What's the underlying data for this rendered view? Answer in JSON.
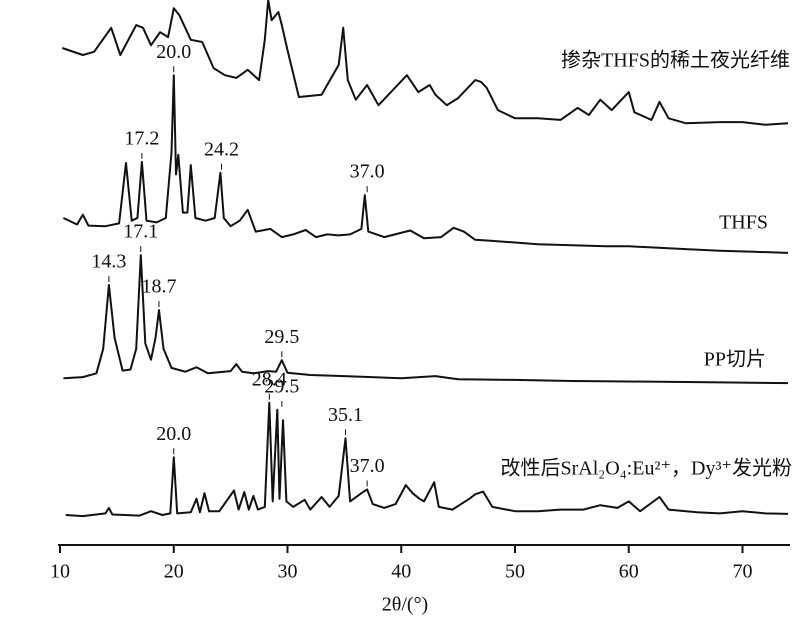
{
  "chart_data": {
    "type": "line",
    "x_label": "2θ/(°)",
    "xlim": [
      10,
      74
    ],
    "ylim": [
      0,
      100
    ],
    "xticks": [
      10,
      20,
      30,
      40,
      50,
      60,
      70
    ],
    "series": [
      {
        "name": "掺杂THFS的稀土夜光纤维",
        "color": "#111111",
        "x": [
          10.2,
          12,
          13,
          14.5,
          15.3,
          16.7,
          17.3,
          18,
          18.8,
          19.5,
          20,
          20.5,
          21.5,
          22.5,
          23.5,
          24.5,
          25.5,
          26.5,
          27.5,
          28,
          28.3,
          28.6,
          29.2,
          29.5,
          30,
          31,
          33,
          34.5,
          34.9,
          35.3,
          36,
          37,
          38,
          40.5,
          41.5,
          42.5,
          43,
          44,
          45,
          46.5,
          47,
          47.5,
          48.5,
          50,
          52,
          54,
          55.5,
          56.5,
          57.5,
          58.5,
          60,
          60.5,
          62,
          62.7,
          63.5,
          65,
          68,
          70,
          72,
          74
        ],
        "values": [
          91.2,
          89.9,
          90.5,
          94.9,
          89.9,
          95.4,
          94.9,
          91.7,
          94.1,
          93.2,
          98.5,
          97.2,
          92.7,
          92.3,
          87.5,
          86.2,
          85.7,
          87.2,
          85.3,
          92.7,
          100,
          96.3,
          97.8,
          95.4,
          90.8,
          82.2,
          82.6,
          88.1,
          94.9,
          85.3,
          81.7,
          84.4,
          80.7,
          86.2,
          83.1,
          84.4,
          82.6,
          80.7,
          82,
          85.3,
          85,
          83.9,
          79.8,
          78.3,
          78.3,
          78,
          80.2,
          78.9,
          81.7,
          79.8,
          83.1,
          79.4,
          78,
          81.3,
          78.3,
          77.4,
          77.6,
          77.6,
          77.1,
          77.4
        ],
        "peaks": [],
        "peak_labels": []
      },
      {
        "name": "THFS",
        "color": "#111111",
        "x": [
          10.3,
          11.5,
          12,
          12.5,
          14,
          15.2,
          15.8,
          16.3,
          16.8,
          17.2,
          17.6,
          18.5,
          19.3,
          19.8,
          20,
          20.2,
          20.4,
          20.8,
          21.2,
          21.5,
          21.9,
          22.8,
          23.6,
          24.1,
          24.4,
          25,
          25.8,
          26.5,
          27.2,
          28.5,
          29.5,
          30.5,
          31.6,
          32.5,
          33.5,
          34.5,
          35.5,
          36.5,
          36.8,
          37.1,
          38.5,
          40.8,
          42,
          43.5,
          44.6,
          45.5,
          46.5,
          48,
          50,
          52,
          55,
          58,
          60,
          62,
          65,
          68,
          71,
          74
        ],
        "values": [
          60,
          58.8,
          60.6,
          58.6,
          58.5,
          59,
          70.1,
          59.5,
          60,
          70.3,
          59.5,
          59.2,
          60,
          72,
          86.2,
          68,
          71.6,
          61,
          61,
          69.7,
          60,
          59.5,
          60,
          68.3,
          60,
          58.5,
          59.5,
          61.5,
          57.5,
          58,
          56.5,
          57,
          57.8,
          56.5,
          57,
          56.8,
          57,
          58,
          64.2,
          57.5,
          56.5,
          57.7,
          56.3,
          56.5,
          58.2,
          57.5,
          56,
          55.8,
          55.5,
          55.2,
          55,
          54.8,
          54.8,
          54.6,
          54.3,
          54,
          53.8,
          53.6
        ],
        "peaks": [
          17.2,
          20.0,
          24.2,
          37.0
        ],
        "peak_labels": [
          "17.2",
          "20.0",
          "24.2",
          "37.0"
        ]
      },
      {
        "name": "PP切片",
        "color": "#111111",
        "x": [
          10.3,
          12,
          13.2,
          13.8,
          14.3,
          14.8,
          15.5,
          16.2,
          16.7,
          17.1,
          17.5,
          18,
          18.4,
          18.7,
          19.1,
          19.8,
          21,
          22,
          23,
          25,
          25.5,
          26,
          27,
          28.3,
          29,
          29.5,
          30,
          32,
          35,
          40,
          43,
          45,
          50,
          55,
          60,
          65,
          70,
          74
        ],
        "values": [
          30.6,
          30.8,
          31.5,
          36,
          47.7,
          38,
          32,
          32.2,
          36,
          53.2,
          37,
          34,
          38,
          43.1,
          36,
          32.5,
          31.8,
          32.6,
          31.5,
          31.9,
          33.2,
          31.8,
          31.5,
          31.9,
          31.8,
          33.9,
          31.6,
          31.2,
          31,
          30.6,
          31,
          30.4,
          30.3,
          30.1,
          30,
          29.9,
          29.8,
          29.7
        ],
        "peaks": [
          14.3,
          17.1,
          18.7,
          29.5
        ],
        "peak_labels": [
          "14.3",
          "17.1",
          "18.7",
          "29.5"
        ]
      },
      {
        "name": "改性后SrAl₂O₄:Eu²⁺，Dy³⁺发光粉",
        "color": "#111111",
        "x": [
          10.5,
          12,
          14,
          14.3,
          14.6,
          17,
          18,
          19,
          19.7,
          20,
          20.3,
          21.5,
          22,
          22.3,
          22.7,
          23.1,
          24,
          25.3,
          25.7,
          26.2,
          26.6,
          27,
          27.4,
          28,
          28.4,
          28.7,
          29.1,
          29.3,
          29.6,
          29.9,
          30.5,
          31.5,
          32,
          33,
          33.7,
          34.5,
          35.1,
          35.5,
          36.5,
          37,
          37.5,
          38.5,
          39.5,
          40.4,
          41,
          41.6,
          42,
          42.9,
          43.3,
          44.5,
          46,
          46.5,
          47.2,
          48,
          50,
          52,
          54,
          56,
          57.5,
          59,
          60,
          61,
          62.7,
          63.5,
          66,
          68,
          70,
          72,
          74
        ],
        "values": [
          5.5,
          5.3,
          5.8,
          6.8,
          5.6,
          5.4,
          6.2,
          5.5,
          5.8,
          16.1,
          5.8,
          6,
          8.5,
          6,
          9.5,
          6.2,
          6.2,
          10,
          6.5,
          9.7,
          6.5,
          9,
          6.5,
          7,
          26.1,
          8,
          24.8,
          8.5,
          22.9,
          8,
          7,
          8.3,
          6.5,
          8.8,
          7,
          9,
          19.6,
          8,
          9.5,
          10.2,
          7.5,
          6.8,
          7.5,
          11,
          9.5,
          8.5,
          8,
          11.5,
          7,
          6.5,
          8.5,
          9.3,
          9.8,
          7,
          6.2,
          6.2,
          6.5,
          6.5,
          7.3,
          6.8,
          8,
          6.2,
          8.8,
          6.5,
          6,
          5.8,
          6.2,
          5.8,
          5.7
        ],
        "peaks": [
          20.0,
          28.4,
          29.5,
          35.1,
          37.0
        ],
        "peak_labels": [
          "20.0",
          "28.4",
          "29.5",
          "35.1",
          "37.0"
        ]
      }
    ]
  }
}
